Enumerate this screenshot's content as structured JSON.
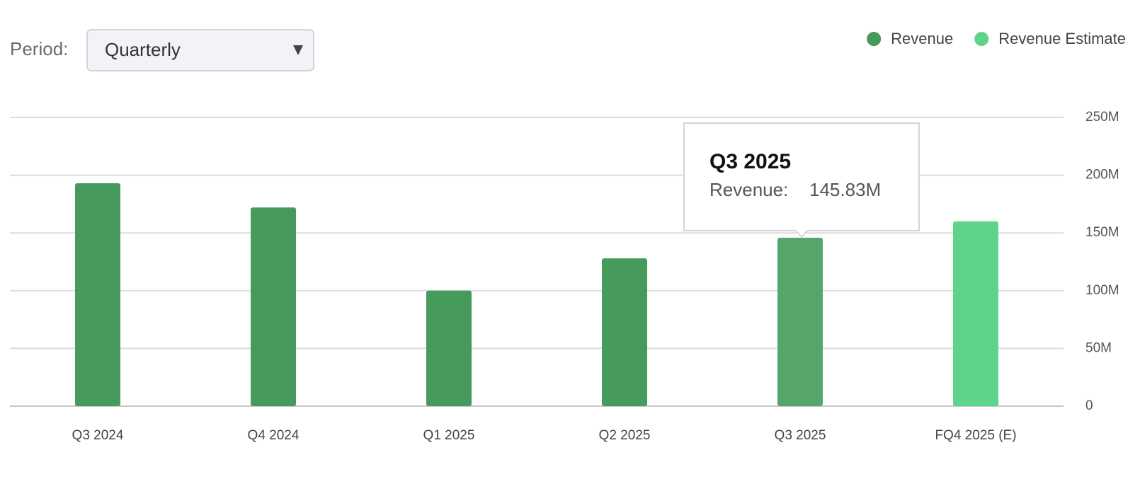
{
  "controls": {
    "period_label": "Period:",
    "period_value": "Quarterly"
  },
  "chart_data": {
    "type": "bar",
    "categories": [
      "Q3 2024",
      "Q4 2024",
      "Q1 2025",
      "Q2 2025",
      "Q3 2025",
      "FQ4 2025 (E)"
    ],
    "series": [
      {
        "name": "Revenue",
        "color": "#459a5c",
        "hover_color": "#56a66c",
        "values": [
          193,
          172,
          100,
          128,
          145.83,
          null
        ]
      },
      {
        "name": "Revenue Estimate",
        "color": "#5ed48a",
        "values": [
          null,
          null,
          null,
          null,
          null,
          160
        ]
      }
    ],
    "ylim": [
      0,
      250
    ],
    "yticks": [
      {
        "value": 0,
        "label": "0"
      },
      {
        "value": 50,
        "label": "50M"
      },
      {
        "value": 100,
        "label": "100M"
      },
      {
        "value": 150,
        "label": "150M"
      },
      {
        "value": 200,
        "label": "200M"
      },
      {
        "value": 250,
        "label": "250M"
      }
    ],
    "grid": true,
    "legend": "top-right",
    "tooltip": {
      "title": "Q3 2025",
      "label": "Revenue:",
      "value": "145.83M"
    }
  }
}
